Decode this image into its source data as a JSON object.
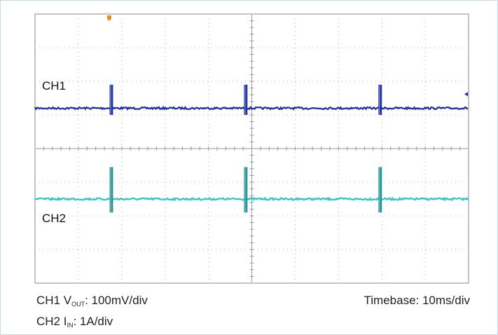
{
  "chart_data": {
    "type": "line",
    "title": "",
    "grid": true,
    "divisions": {
      "x": 10,
      "y": 8,
      "minor_per_div": 5
    },
    "series": [
      {
        "name": "CH1",
        "color": "#1a2e9c",
        "baseline_div": 1.2,
        "noise_div": 0.03,
        "spike_times_div": [
          1.76,
          4.86,
          7.96
        ],
        "spike_extent_div": [
          0.7,
          -0.2
        ]
      },
      {
        "name": "CH2",
        "color": "#2ec4c4",
        "spike_color": "#1f8f8f",
        "baseline_div": -1.5,
        "noise_div": 0.03,
        "spike_times_div": [
          1.76,
          4.86,
          7.96
        ],
        "spike_extent_div": [
          0.95,
          -0.4
        ]
      }
    ],
    "trigger_marker_color": "#f08c1e"
  },
  "captions": {
    "ch1_prefix": "CH1 V",
    "ch1_sub": "OUT",
    "ch1_suffix": ": 100mV/div",
    "ch2_prefix": "CH2 I",
    "ch2_sub": "IN",
    "ch2_suffix": ": 1A/div",
    "timebase": "Timebase: 10ms/div"
  }
}
